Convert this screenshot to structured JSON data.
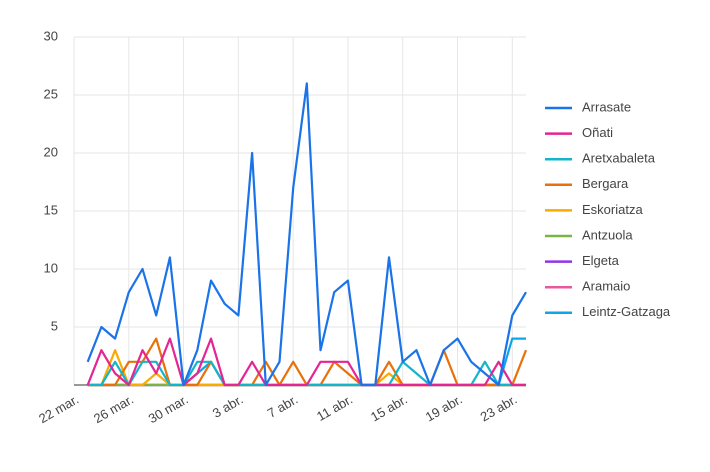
{
  "chart_data": {
    "type": "line",
    "categories": [
      "22 mar.",
      null,
      null,
      null,
      "26 mar.",
      null,
      null,
      null,
      "30 mar.",
      null,
      null,
      null,
      "3 abr.",
      null,
      null,
      null,
      "7 abr.",
      null,
      null,
      null,
      "11 abr.",
      null,
      null,
      null,
      "15 abr.",
      null,
      null,
      null,
      "19 abr.",
      null,
      null,
      null,
      "23 abr.",
      null
    ],
    "ylim": [
      0,
      30
    ],
    "yticks": [
      5,
      10,
      15,
      20,
      25,
      30
    ],
    "grid": true,
    "legend": "right",
    "series": [
      {
        "name": "Arrasate",
        "color": "#1a73e8",
        "values": [
          null,
          2,
          5,
          4,
          8,
          10,
          6,
          11,
          0,
          3,
          9,
          7,
          6,
          20,
          0,
          2,
          17,
          26,
          3,
          8,
          9,
          0,
          0,
          11,
          2,
          3,
          0,
          3,
          4,
          2,
          1,
          0,
          6,
          8
        ]
      },
      {
        "name": "Oñati",
        "color": "#e52592",
        "values": [
          null,
          0,
          3,
          1,
          0,
          3,
          1,
          4,
          0,
          1,
          4,
          0,
          0,
          2,
          0,
          0,
          0,
          0,
          2,
          2,
          2,
          0,
          0,
          0,
          0,
          0,
          0,
          0,
          0,
          0,
          0,
          2,
          0,
          0
        ]
      },
      {
        "name": "Aretxabaleta",
        "color": "#12b5cb",
        "values": [
          null,
          0,
          0,
          2,
          0,
          2,
          2,
          0,
          0,
          2,
          2,
          0,
          0,
          0,
          0,
          0,
          0,
          0,
          0,
          0,
          0,
          0,
          0,
          0,
          2,
          1,
          0,
          0,
          0,
          0,
          2,
          0,
          0,
          0
        ]
      },
      {
        "name": "Bergara",
        "color": "#e8710a",
        "values": [
          null,
          0,
          0,
          0,
          2,
          2,
          4,
          0,
          0,
          0,
          2,
          0,
          0,
          0,
          2,
          0,
          2,
          0,
          0,
          2,
          1,
          0,
          0,
          2,
          0,
          0,
          0,
          3,
          0,
          0,
          0,
          0,
          0,
          3
        ]
      },
      {
        "name": "Eskoriatza",
        "color": "#f9ab00",
        "values": [
          null,
          0,
          0,
          3,
          0,
          0,
          1,
          0,
          0,
          0,
          0,
          0,
          0,
          0,
          0,
          0,
          0,
          0,
          0,
          0,
          0,
          0,
          0,
          1,
          0,
          0,
          0,
          0,
          0,
          0,
          0,
          0,
          0,
          0
        ]
      },
      {
        "name": "Antzuola",
        "color": "#7cb342",
        "values": [
          null,
          0,
          0,
          0,
          0,
          0,
          0,
          0,
          0,
          0,
          0,
          0,
          0,
          0,
          0,
          0,
          0,
          0,
          0,
          0,
          0,
          0,
          0,
          0,
          0,
          0,
          0,
          0,
          0,
          0,
          0,
          0,
          0,
          0
        ]
      },
      {
        "name": "Elgeta",
        "color": "#9334e6",
        "values": [
          null,
          0,
          0,
          0,
          0,
          0,
          0,
          0,
          0,
          0,
          0,
          0,
          0,
          0,
          0,
          0,
          0,
          0,
          0,
          0,
          0,
          0,
          0,
          0,
          0,
          0,
          0,
          0,
          0,
          0,
          0,
          0,
          0,
          0
        ]
      },
      {
        "name": "Aramaio",
        "color": "#e8589c",
        "values": [
          null,
          0,
          0,
          0,
          0,
          0,
          0,
          0,
          0,
          0,
          0,
          0,
          0,
          0,
          0,
          0,
          0,
          0,
          0,
          0,
          0,
          0,
          0,
          0,
          0,
          0,
          0,
          0,
          0,
          0,
          0,
          0,
          0,
          0
        ]
      },
      {
        "name": "Leintz-Gatzaga",
        "color": "#12a4e8",
        "values": [
          null,
          0,
          0,
          0,
          0,
          0,
          0,
          0,
          0,
          1,
          2,
          0,
          0,
          0,
          0,
          0,
          0,
          0,
          0,
          0,
          0,
          0,
          0,
          0,
          0,
          0,
          0,
          0,
          0,
          0,
          0,
          0,
          4,
          4
        ]
      }
    ]
  }
}
